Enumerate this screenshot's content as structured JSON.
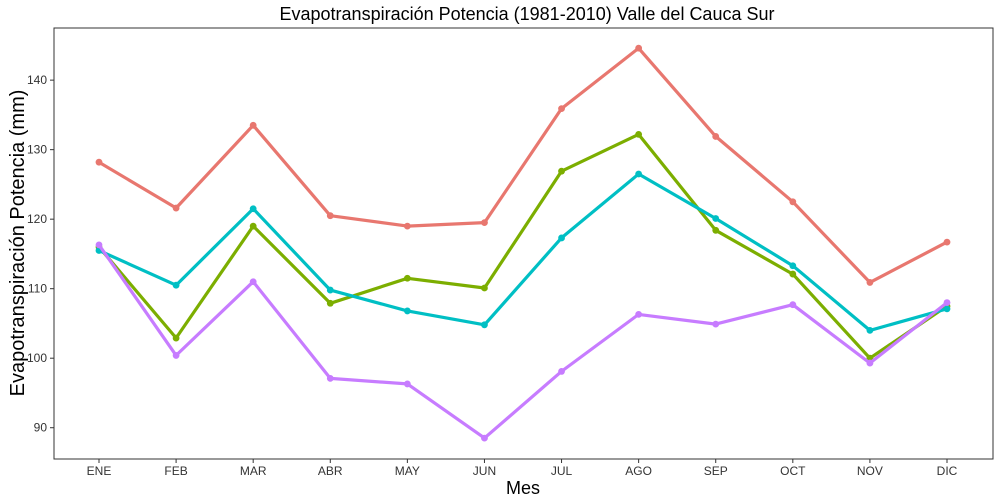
{
  "chart_data": {
    "type": "line",
    "title": "Evapotranspiración Potencia (1981-2010)  Valle del Cauca Sur",
    "xlabel": "Mes",
    "ylabel": "Evapotranspiración Potencia  (mm)",
    "categories": [
      "ENE",
      "FEB",
      "MAR",
      "ABR",
      "MAY",
      "JUN",
      "JUL",
      "AGO",
      "SEP",
      "OCT",
      "NOV",
      "DIC"
    ],
    "ylim": [
      85.5,
      147.5
    ],
    "yticks": [
      90,
      100,
      110,
      120,
      130,
      140
    ],
    "grid": false,
    "legend": "none",
    "series": [
      {
        "color": "#E8776F",
        "values": [
          128.2,
          121.6,
          133.5,
          120.5,
          119.0,
          119.5,
          135.9,
          144.6,
          131.9,
          122.5,
          110.9,
          116.7
        ]
      },
      {
        "color": "#7CAE00",
        "values": [
          116.0,
          102.9,
          119.0,
          107.9,
          111.5,
          110.1,
          126.9,
          132.2,
          118.4,
          112.1,
          100.0,
          107.5
        ]
      },
      {
        "color": "#00BFC4",
        "values": [
          115.5,
          110.5,
          121.5,
          109.8,
          106.8,
          104.8,
          117.3,
          126.5,
          120.1,
          113.3,
          104.0,
          107.1
        ]
      },
      {
        "color": "#C77CFF",
        "values": [
          116.3,
          100.4,
          111.0,
          97.1,
          96.3,
          88.5,
          98.1,
          106.3,
          104.9,
          107.7,
          99.3,
          108.0
        ]
      }
    ]
  }
}
